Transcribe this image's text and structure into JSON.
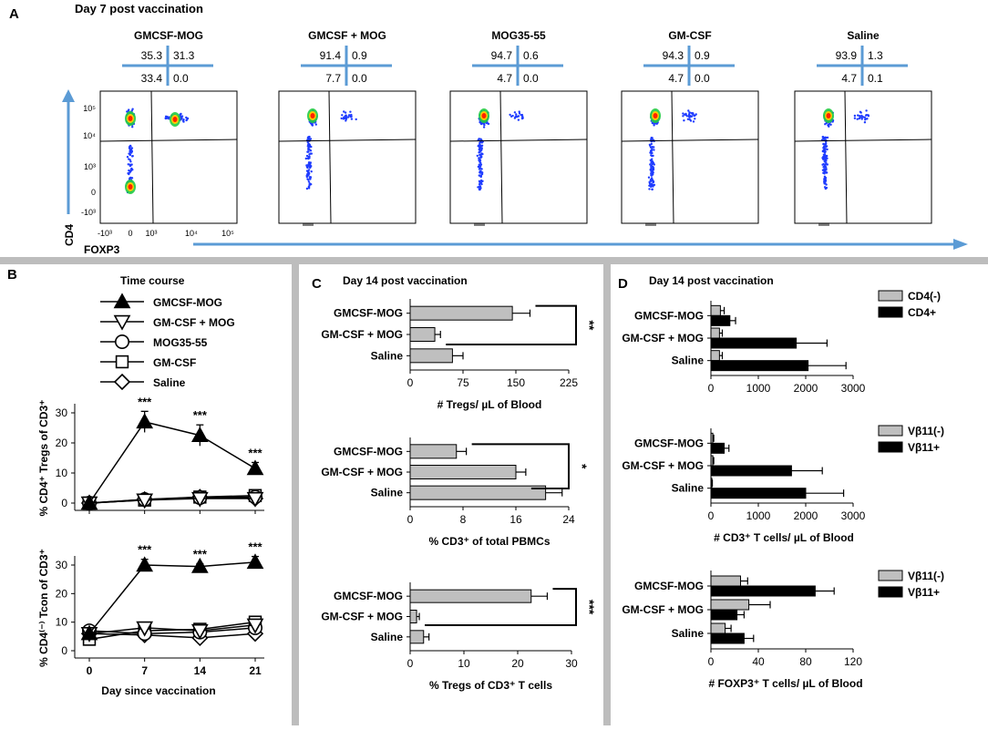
{
  "colors": {
    "separator": "#bdbdbd",
    "arrow": "#5b9bd5",
    "bar_gray": "#bfbfbf",
    "bar_black": "#000000",
    "quad": "#5b9bd5"
  },
  "panel_a": {
    "letter": "A",
    "title": "Day 7 post vaccination",
    "y_axis_label": "CD4",
    "x_axis_label": "FOXP3",
    "x_ticks": [
      "-10³",
      "0",
      "10³",
      "10⁴",
      "10⁵"
    ],
    "y_ticks": [
      "10⁵",
      "10⁴",
      "10³",
      "0",
      "-10³"
    ],
    "groups": [
      {
        "name": "GMCSF-MOG",
        "ul": "35.3",
        "ur": "31.3",
        "ll": "33.4",
        "lr": "0.0"
      },
      {
        "name": "GMCSF + MOG",
        "ul": "91.4",
        "ur": "0.9",
        "ll": "7.7",
        "lr": "0.0"
      },
      {
        "name": "MOG35-55",
        "ul": "94.7",
        "ur": "0.6",
        "ll": "4.7",
        "lr": "0.0"
      },
      {
        "name": "GM-CSF",
        "ul": "94.3",
        "ur": "0.9",
        "ll": "4.7",
        "lr": "0.0"
      },
      {
        "name": "Saline",
        "ul": "93.9",
        "ur": "1.3",
        "ll": "4.7",
        "lr": "0.1"
      }
    ]
  },
  "panel_b": {
    "letter": "B",
    "title": "Time course",
    "legend": [
      "GMCSF-MOG",
      "GM-CSF + MOG",
      "MOG35-55",
      "GM-CSF",
      "Saline"
    ],
    "x_label": "Day since vaccination",
    "x_ticks": [
      "0",
      "7",
      "14",
      "21"
    ]
  },
  "panel_c": {
    "letter": "C",
    "title": "Day 14 post vaccination"
  },
  "panel_d": {
    "letter": "D",
    "title": "Day 14 post vaccination"
  },
  "chart_data": [
    {
      "id": "b1",
      "type": "line",
      "title": "",
      "ylabel": "% CD4⁺ Tregs of CD3⁺",
      "xlabel": "",
      "x": [
        0,
        7,
        14,
        21
      ],
      "ylim": [
        0,
        30
      ],
      "yticks": [
        "0",
        "10",
        "20",
        "30"
      ],
      "series": [
        {
          "name": "GMCSF-MOG",
          "marker": "triangle",
          "values": [
            0,
            27,
            22.5,
            11.5
          ],
          "err": [
            0,
            3.5,
            3.5,
            2
          ]
        },
        {
          "name": "GM-CSF + MOG",
          "marker": "tri-down",
          "values": [
            0,
            1,
            1.5,
            1.5
          ],
          "err": [
            0,
            0,
            0,
            0
          ]
        },
        {
          "name": "MOG35-55",
          "marker": "circle",
          "values": [
            0,
            1.2,
            1.8,
            2
          ],
          "err": [
            0,
            0,
            0,
            0
          ]
        },
        {
          "name": "GM-CSF",
          "marker": "square",
          "values": [
            0,
            1,
            2,
            2.5
          ],
          "err": [
            0,
            0,
            0,
            0
          ]
        },
        {
          "name": "Saline",
          "marker": "diamond",
          "values": [
            0,
            1.2,
            2,
            1.5
          ],
          "err": [
            0,
            0,
            0,
            0
          ]
        }
      ],
      "annotations": [
        {
          "x": 7,
          "text": "***"
        },
        {
          "x": 14,
          "text": "***"
        },
        {
          "x": 21,
          "text": "***"
        }
      ]
    },
    {
      "id": "b2",
      "type": "line",
      "title": "",
      "ylabel": "% CD4⁽⁻⁾ Tcon of CD3⁺",
      "xlabel": "Day since vaccination",
      "x": [
        0,
        7,
        14,
        21
      ],
      "ylim": [
        0,
        30
      ],
      "yticks": [
        "0",
        "10",
        "20",
        "30"
      ],
      "series": [
        {
          "name": "GMCSF-MOG",
          "marker": "triangle",
          "values": [
            6,
            30,
            29.5,
            31
          ],
          "err": [
            0,
            2,
            1,
            2
          ]
        },
        {
          "name": "GM-CSF + MOG",
          "marker": "tri-down",
          "values": [
            6,
            8,
            7,
            9
          ],
          "err": [
            0,
            1,
            1,
            1
          ]
        },
        {
          "name": "MOG35-55",
          "marker": "circle",
          "values": [
            7,
            6,
            6.5,
            8
          ],
          "err": [
            0,
            1,
            1,
            1
          ]
        },
        {
          "name": "GM-CSF",
          "marker": "square",
          "values": [
            4,
            7,
            7.5,
            10
          ],
          "err": [
            0,
            1,
            1,
            1
          ]
        },
        {
          "name": "Saline",
          "marker": "diamond",
          "values": [
            6,
            5.5,
            4.5,
            6
          ],
          "err": [
            0,
            1,
            1,
            1
          ]
        }
      ],
      "annotations": [
        {
          "x": 7,
          "text": "***"
        },
        {
          "x": 14,
          "text": "***"
        },
        {
          "x": 21,
          "text": "***"
        }
      ]
    },
    {
      "id": "c1",
      "type": "bar",
      "orientation": "horizontal",
      "categories": [
        "GMCSF-MOG",
        "GM-CSF + MOG",
        "Saline"
      ],
      "series": [
        {
          "name": "",
          "color": "gray",
          "values": [
            145,
            35,
            60
          ],
          "err": [
            25,
            8,
            15
          ]
        }
      ],
      "xlim": [
        0,
        225
      ],
      "xticks": [
        "0",
        "75",
        "150",
        "225"
      ],
      "xlabel": "# Tregs/ µL of Blood",
      "significance": "**"
    },
    {
      "id": "c2",
      "type": "bar",
      "orientation": "horizontal",
      "categories": [
        "GMCSF-MOG",
        "GM-CSF + MOG",
        "Saline"
      ],
      "series": [
        {
          "name": "",
          "color": "gray",
          "values": [
            7,
            16,
            20.5
          ],
          "err": [
            1.5,
            1.5,
            2.5
          ]
        }
      ],
      "xlim": [
        0,
        24
      ],
      "xticks": [
        "0",
        "8",
        "16",
        "24"
      ],
      "xlabel": "% CD3⁺ of total PBMCs",
      "significance": "*"
    },
    {
      "id": "c3",
      "type": "bar",
      "orientation": "horizontal",
      "categories": [
        "GMCSF-MOG",
        "GM-CSF + MOG",
        "Saline"
      ],
      "series": [
        {
          "name": "",
          "color": "gray",
          "values": [
            22.5,
            1.2,
            2.5
          ],
          "err": [
            3,
            0.5,
            1
          ]
        }
      ],
      "xlim": [
        0,
        30
      ],
      "xticks": [
        "0",
        "10",
        "20",
        "30"
      ],
      "xlabel": "% Tregs of CD3⁺ T cells",
      "significance": "***"
    },
    {
      "id": "d1",
      "type": "bar",
      "orientation": "horizontal",
      "categories": [
        "GMCSF-MOG",
        "GM-CSF + MOG",
        "Saline"
      ],
      "series": [
        {
          "name": "CD4(-)",
          "color": "gray",
          "values": [
            200,
            180,
            180
          ],
          "err": [
            80,
            60,
            60
          ]
        },
        {
          "name": "CD4+",
          "color": "black",
          "values": [
            400,
            1800,
            2050
          ],
          "err": [
            120,
            650,
            800
          ]
        }
      ],
      "xlim": [
        0,
        3000
      ],
      "xticks": [
        "0",
        "1000",
        "2000",
        "3000"
      ],
      "xlabel": ""
    },
    {
      "id": "d2",
      "type": "bar",
      "orientation": "horizontal",
      "categories": [
        "GMCSF-MOG",
        "GM-CSF + MOG",
        "Saline"
      ],
      "series": [
        {
          "name": "Vβ11(-)",
          "color": "gray",
          "values": [
            40,
            40,
            20
          ],
          "err": [
            20,
            20,
            10
          ]
        },
        {
          "name": "Vβ11+",
          "color": "black",
          "values": [
            280,
            1700,
            2000
          ],
          "err": [
            100,
            650,
            800
          ]
        }
      ],
      "xlim": [
        0,
        3000
      ],
      "xticks": [
        "0",
        "1000",
        "2000",
        "3000"
      ],
      "xlabel": "# CD3⁺ T cells/ µL of Blood"
    },
    {
      "id": "d3",
      "type": "bar",
      "orientation": "horizontal",
      "categories": [
        "GMCSF-MOG",
        "GM-CSF + MOG",
        "Saline"
      ],
      "series": [
        {
          "name": "Vβ11(-)",
          "color": "gray",
          "values": [
            25,
            32,
            12
          ],
          "err": [
            6,
            18,
            5
          ]
        },
        {
          "name": "Vβ11+",
          "color": "black",
          "values": [
            88,
            22,
            28
          ],
          "err": [
            16,
            6,
            8
          ]
        }
      ],
      "xlim": [
        0,
        120
      ],
      "xticks": [
        "0",
        "40",
        "80",
        "120"
      ],
      "xlabel": "# FOXP3⁺ T cells/ µL of Blood"
    }
  ]
}
